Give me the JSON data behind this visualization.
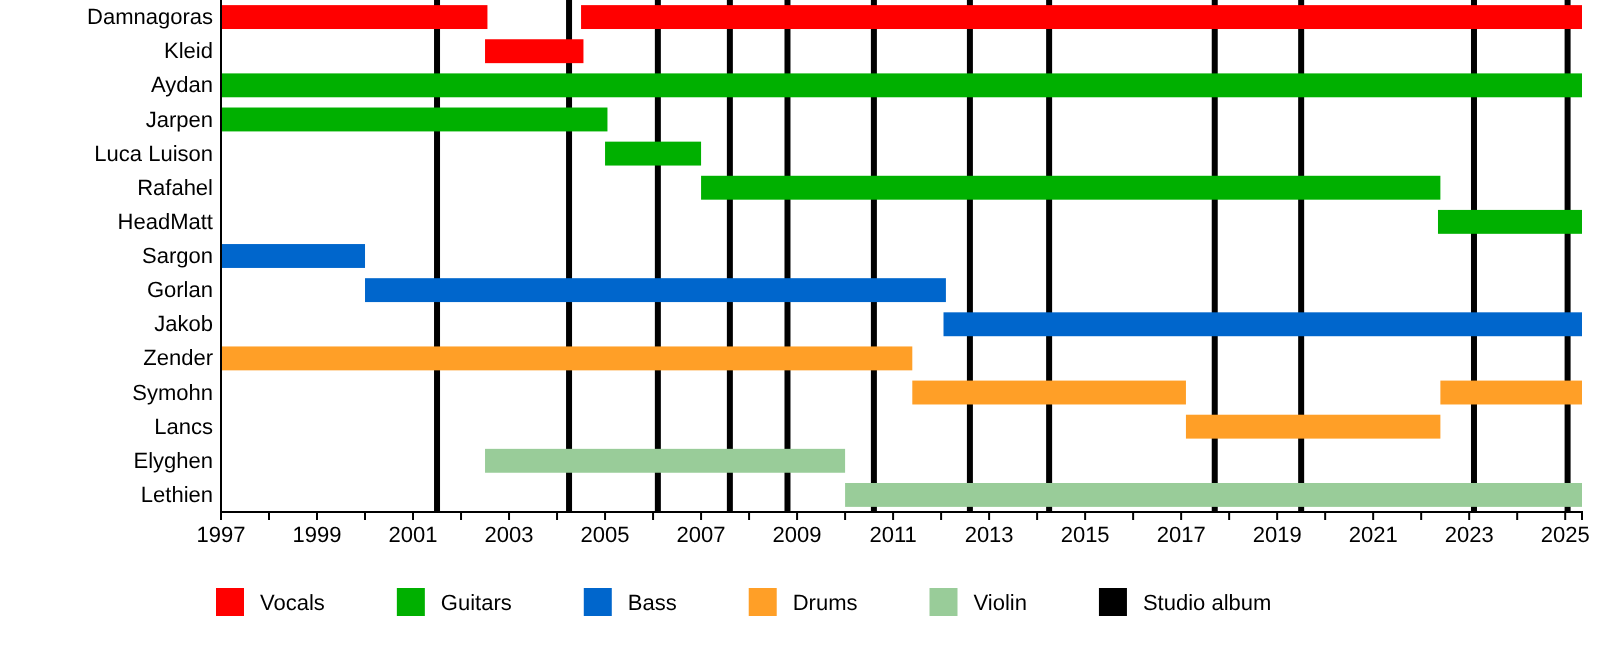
{
  "chart_data": {
    "type": "bar",
    "orientation": "horizontal",
    "categories": [
      "Damnagoras",
      "Kleid",
      "Aydan",
      "Jarpen",
      "Luca Luison",
      "Rafahel",
      "HeadMatt",
      "Sargon",
      "Gorlan",
      "Jakob",
      "Zender",
      "Symohn",
      "Lancs",
      "Elyghen",
      "Lethien"
    ],
    "series": [
      {
        "name": "Vocals",
        "color": "#ff0000",
        "base": [
          1997,
          2002.5,
          null,
          null,
          null,
          null,
          null,
          null,
          null,
          null,
          null,
          null,
          null,
          null,
          null
        ],
        "values": [
          5.55,
          2.05,
          null,
          null,
          null,
          null,
          null,
          null,
          null,
          null,
          null,
          null,
          null,
          null,
          null
        ]
      },
      {
        "color": "#ff0000",
        "base": [
          2004.5,
          null,
          null,
          null,
          null,
          null,
          null,
          null,
          null,
          null,
          null,
          null,
          null,
          null,
          null
        ],
        "values": [
          20.85,
          null,
          null,
          null,
          null,
          null,
          null,
          null,
          null,
          null,
          null,
          null,
          null,
          null,
          null
        ]
      },
      {
        "name": "Guitars",
        "color": "#00b000",
        "base": [
          null,
          null,
          1997,
          1997,
          2005.0,
          2007.0,
          2022.35,
          null,
          null,
          null,
          null,
          null,
          null,
          null,
          null
        ],
        "values": [
          null,
          null,
          28.35,
          8.05,
          2.0,
          15.4,
          3.0,
          null,
          null,
          null,
          null,
          null,
          null,
          null,
          null
        ]
      },
      {
        "name": "Bass",
        "color": "#0066cc",
        "base": [
          null,
          null,
          null,
          null,
          null,
          null,
          null,
          1997,
          2000.0,
          2012.05,
          null,
          null,
          null,
          null,
          null
        ],
        "values": [
          null,
          null,
          null,
          null,
          null,
          null,
          null,
          3.0,
          12.1,
          13.3,
          null,
          null,
          null,
          null,
          null
        ]
      },
      {
        "name": "Drums",
        "color": "#ff9f27",
        "base": [
          null,
          null,
          null,
          null,
          null,
          null,
          null,
          null,
          null,
          null,
          1997,
          2011.4,
          2017.1,
          null,
          null
        ],
        "values": [
          null,
          null,
          null,
          null,
          null,
          null,
          null,
          null,
          null,
          null,
          14.4,
          5.7,
          5.3,
          null,
          null
        ]
      },
      {
        "color": "#ff9f27",
        "base": [
          null,
          null,
          null,
          null,
          null,
          null,
          null,
          null,
          null,
          null,
          null,
          2022.4,
          null,
          null,
          null
        ],
        "values": [
          null,
          null,
          null,
          null,
          null,
          null,
          null,
          null,
          null,
          null,
          null,
          2.95,
          null,
          null,
          null
        ]
      },
      {
        "name": "Violin",
        "color": "#99cc99",
        "base": [
          null,
          null,
          null,
          null,
          null,
          null,
          null,
          null,
          null,
          null,
          null,
          null,
          null,
          2002.5,
          2010.0
        ],
        "values": [
          null,
          null,
          null,
          null,
          null,
          null,
          null,
          null,
          null,
          null,
          null,
          null,
          null,
          7.5,
          15.35
        ]
      }
    ],
    "xlim": [
      1997,
      2025.35
    ],
    "xticks": [
      1997,
      {
        "value": 1998,
        "label": null
      },
      1999,
      {
        "value": 2000,
        "label": null
      },
      2001,
      {
        "value": 2002,
        "label": null
      },
      2003,
      {
        "value": 2004,
        "label": null
      },
      2005,
      {
        "value": 2006,
        "label": null
      },
      2007,
      {
        "value": 2008,
        "label": null
      },
      2009,
      {
        "value": 2010,
        "label": null
      },
      2011,
      {
        "value": 2012,
        "label": null
      },
      2013,
      {
        "value": 2014,
        "label": null
      },
      2015,
      {
        "value": 2016,
        "label": null
      },
      2017,
      {
        "value": 2018,
        "label": null
      },
      2019,
      {
        "value": 2020,
        "label": null
      },
      2021,
      {
        "value": 2022,
        "label": null
      },
      2023,
      {
        "value": 2024,
        "label": null
      },
      2025
    ],
    "ref_lines": [
      {
        "axis": "x",
        "value": 2001.5,
        "label": "Studio album",
        "color": "#000000"
      },
      {
        "axis": "x",
        "value": 2004.25,
        "color": "#000000"
      },
      {
        "axis": "x",
        "value": 2006.1,
        "color": "#000000"
      },
      {
        "axis": "x",
        "value": 2007.6,
        "color": "#000000"
      },
      {
        "axis": "x",
        "value": 2008.8,
        "color": "#000000"
      },
      {
        "axis": "x",
        "value": 2010.6,
        "color": "#000000"
      },
      {
        "axis": "x",
        "value": 2012.6,
        "color": "#000000"
      },
      {
        "axis": "x",
        "value": 2014.25,
        "color": "#000000"
      },
      {
        "axis": "x",
        "value": 2017.7,
        "color": "#000000"
      },
      {
        "axis": "x",
        "value": 2019.5,
        "color": "#000000"
      },
      {
        "axis": "x",
        "value": 2023.1,
        "color": "#000000"
      },
      {
        "axis": "x",
        "value": 2025.05,
        "color": "#000000"
      }
    ],
    "grid": false,
    "legend": "bottom"
  }
}
